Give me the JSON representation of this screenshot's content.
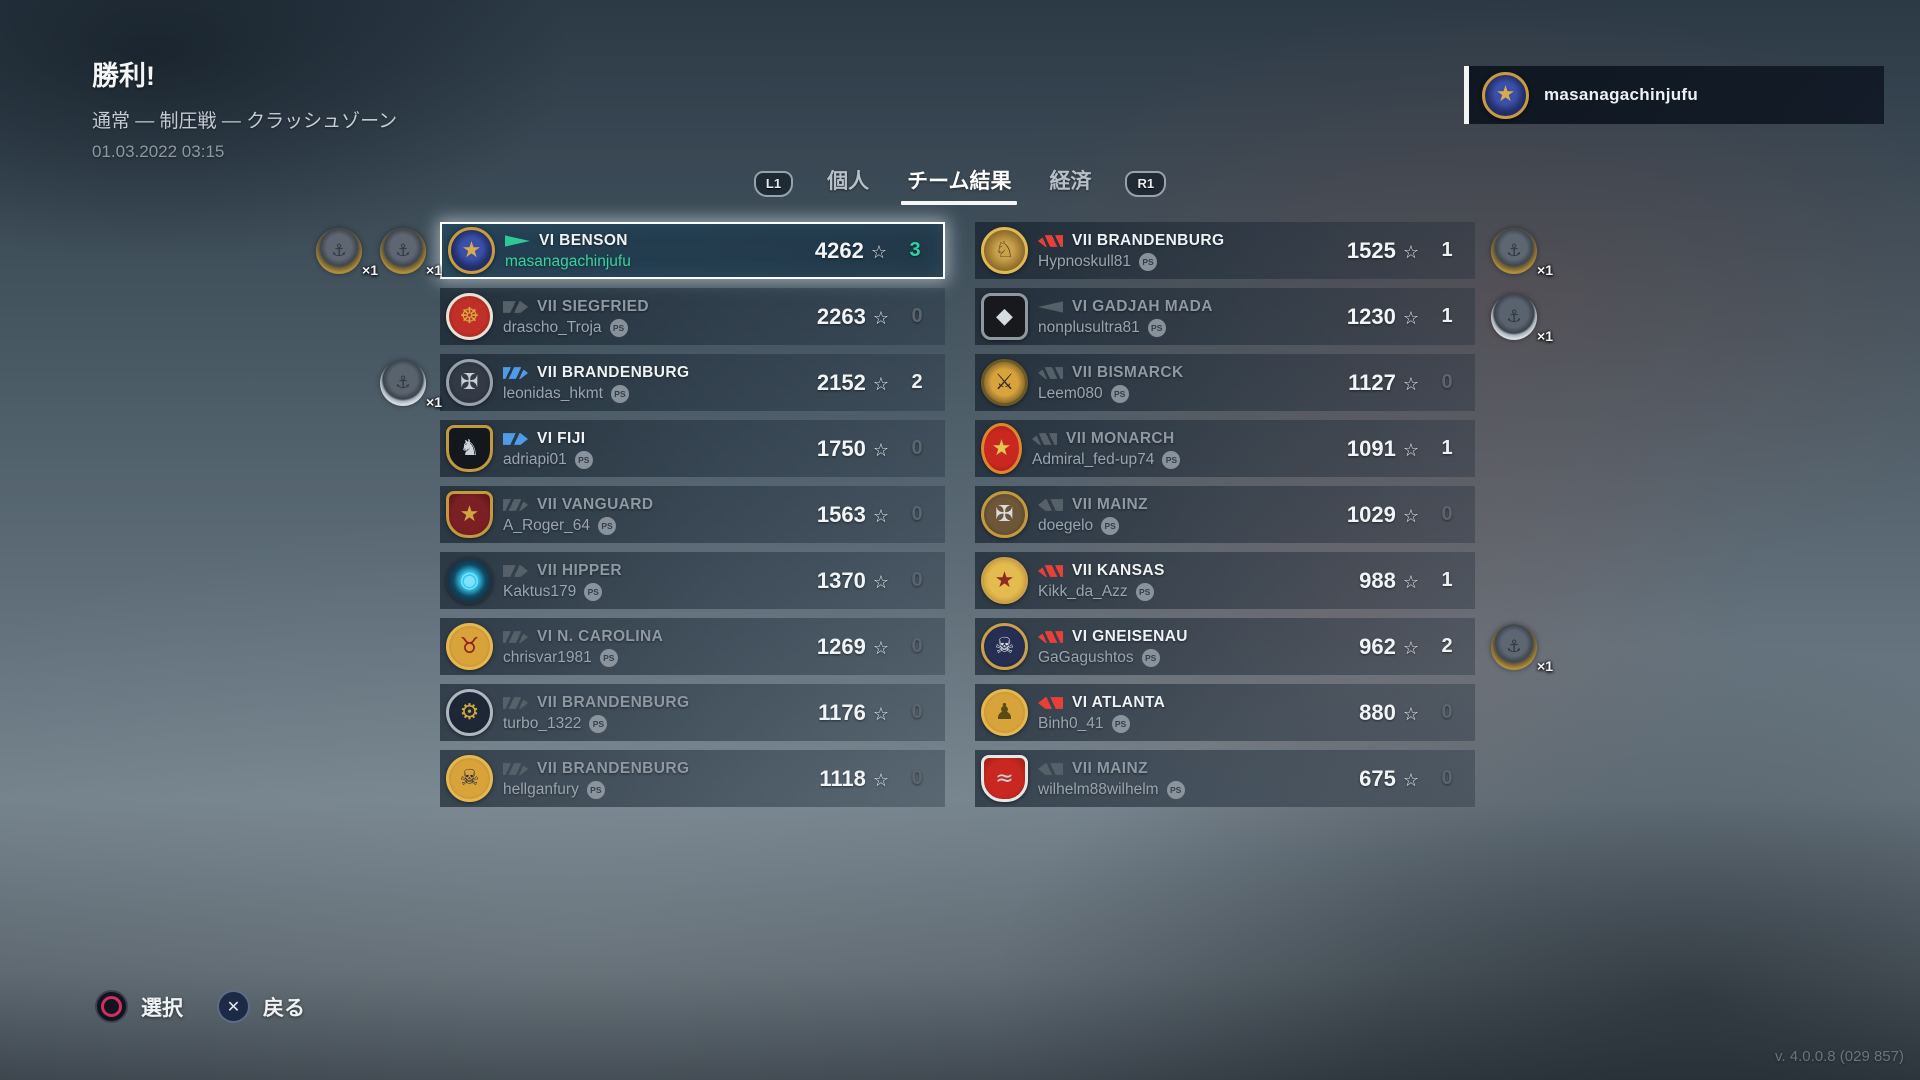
{
  "header": {
    "result": "勝利!",
    "mode": "通常 — 制圧戦 — クラッシュゾーン",
    "timestamp": "01.03.2022 03:15"
  },
  "profile": {
    "name": "masanagachinjufu",
    "emblem": {
      "shape": "circle",
      "bg": "radial-gradient(circle at 50% 45%, #3a4fa8 0 35%, #23306b 60%, #1a2450 100%)",
      "ring": "#c99b3f",
      "glyph": "★",
      "glyph_color": "#d9ab4f"
    }
  },
  "tabs": {
    "l1_label": "L1",
    "r1_label": "R1",
    "items": [
      {
        "label": "個人",
        "active": false
      },
      {
        "label": "チーム結果",
        "active": true
      },
      {
        "label": "経済",
        "active": false
      }
    ]
  },
  "icons": {
    "star": "☆",
    "ps": "PS",
    "cross": "✕"
  },
  "colors": {
    "accent": "#2fd3a2",
    "enemy": "#e84039",
    "division": "#4f9be8",
    "dead": "#566069"
  },
  "teams": {
    "left": [
      {
        "label": "VI BENSON",
        "player": "masanagachinjufu",
        "score": "4262",
        "kills": "3",
        "class": "destroyer",
        "state": "self",
        "ps": false,
        "medals": [
          {
            "type": "gold",
            "count": "×1"
          },
          {
            "type": "gold",
            "count": "×1"
          }
        ],
        "emblem": {
          "shape": "circle",
          "bg": "radial-gradient(circle at 50% 45%, #3a4fa8 0 35%, #23306b 60%, #1a2450 100%)",
          "ring": "#c99b3f",
          "glyph": "★",
          "glyph_color": "#d9ab4f"
        }
      },
      {
        "label": "VII SIEGFRIED",
        "player": "drascho_Troja",
        "score": "2263",
        "kills": "0",
        "class": "cruiser",
        "state": "ally-dead",
        "ps": true,
        "medals": [],
        "emblem": {
          "shape": "circle",
          "bg": "radial-gradient(circle, #c03028 0 55%, #8e1f1c 100%)",
          "ring": "#e8e2d4",
          "glyph": "☸",
          "glyph_color": "#d9a93f"
        }
      },
      {
        "label": "VII BRANDENBURG",
        "player": "leonidas_hkmt",
        "score": "2152",
        "kills": "2",
        "class": "battleship",
        "state": "division",
        "ps": true,
        "medals": [
          {
            "type": "silver",
            "count": "×1"
          }
        ],
        "emblem": {
          "shape": "circle",
          "bg": "radial-gradient(circle, #323a46 0 55%, #20262e 100%)",
          "ring": "#98a1ab",
          "glyph": "✠",
          "glyph_color": "#c9ced4"
        }
      },
      {
        "label": "VI FIJI",
        "player": "adriapi01",
        "score": "1750",
        "kills": "0",
        "class": "cruiser",
        "state": "division",
        "ps": true,
        "medals": [],
        "emblem": {
          "shape": "shield",
          "bg": "#14171c",
          "ring": "#c2993d",
          "glyph": "♞",
          "glyph_color": "#cdd3d8"
        }
      },
      {
        "label": "VII VANGUARD",
        "player": "A_Roger_64",
        "score": "1563",
        "kills": "0",
        "class": "battleship",
        "state": "ally-dead",
        "ps": true,
        "medals": [],
        "emblem": {
          "shape": "shield",
          "bg": "radial-gradient(circle, #7a2024 0 60%, #571417 100%)",
          "ring": "#c2993d",
          "glyph": "★",
          "glyph_color": "#d2a63f"
        }
      },
      {
        "label": "VII HIPPER",
        "player": "Kaktus179",
        "score": "1370",
        "kills": "0",
        "class": "cruiser",
        "state": "ally-dead",
        "ps": true,
        "medals": [],
        "emblem": {
          "shape": "circle",
          "bg": "radial-gradient(circle, #36c9f2 0 28%, #104a63 55%, #0b1a26 100%)",
          "ring": "#233241",
          "glyph": "◉",
          "glyph_color": "#7fe3ff"
        }
      },
      {
        "label": "VI N. CAROLINA",
        "player": "chrisvar1981",
        "score": "1269",
        "kills": "0",
        "class": "battleship",
        "state": "ally-dead",
        "ps": true,
        "medals": [],
        "emblem": {
          "shape": "circle",
          "bg": "radial-gradient(circle, #d9a33c 0 60%, #a87a26 100%)",
          "ring": "#e4b84e",
          "glyph": "♉",
          "glyph_color": "#8e1f1c"
        }
      },
      {
        "label": "VII BRANDENBURG",
        "player": "turbo_1322",
        "score": "1176",
        "kills": "0",
        "class": "battleship",
        "state": "ally-dead",
        "ps": true,
        "medals": [],
        "emblem": {
          "shape": "circle",
          "bg": "radial-gradient(circle, #1d2736 0 60%, #131a25 100%)",
          "ring": "#aeb6bf",
          "glyph": "⚙",
          "glyph_color": "#d2a63f"
        }
      },
      {
        "label": "VII BRANDENBURG",
        "player": "hellganfury",
        "score": "1118",
        "kills": "0",
        "class": "battleship",
        "state": "ally-dead",
        "ps": true,
        "medals": [],
        "emblem": {
          "shape": "circle",
          "bg": "radial-gradient(circle, #d9a33c 0 60%, #a87a26 100%)",
          "ring": "#e4b84e",
          "glyph": "☠",
          "glyph_color": "#2a2f38"
        }
      }
    ],
    "right": [
      {
        "label": "VII BRANDENBURG",
        "player": "Hypnoskull81",
        "score": "1525",
        "kills": "1",
        "class": "battleship",
        "state": "enemy",
        "ps": true,
        "medals": [
          {
            "type": "gold",
            "count": "×1"
          }
        ],
        "emblem": {
          "shape": "circle",
          "bg": "radial-gradient(circle, #caa04a 0 30%, #8a6a28 70%, #6e5420 100%)",
          "ring": "#e0b955",
          "glyph": "♘",
          "glyph_color": "#3a3326"
        }
      },
      {
        "label": "VI GADJAH MADA",
        "player": "nonplusultra81",
        "score": "1230",
        "kills": "1",
        "class": "destroyer",
        "state": "enemy-dead",
        "ps": true,
        "medals": [
          {
            "type": "silver",
            "count": "×1"
          }
        ],
        "emblem": {
          "shape": "square",
          "bg": "#17191d",
          "ring": "#8f979f",
          "glyph": "◆",
          "glyph_color": "#d7dce0"
        }
      },
      {
        "label": "VII BISMARCK",
        "player": "Leem080",
        "score": "1127",
        "kills": "0",
        "class": "battleship",
        "state": "enemy-dead",
        "ps": true,
        "medals": [],
        "emblem": {
          "shape": "circle",
          "bg": "radial-gradient(circle, #d9a33c 0 45%, #3a3323 100%)",
          "ring": "#6b5a26",
          "glyph": "⚔",
          "glyph_color": "#2e2a1c"
        }
      },
      {
        "label": "VII MONARCH",
        "player": "Admiral_fed-up74",
        "score": "1091",
        "kills": "1",
        "class": "battleship",
        "state": "enemy-dead",
        "ps": true,
        "medals": [],
        "emblem": {
          "shape": "oval",
          "bg": "radial-gradient(circle, #c8281f 0 60%, #931a14 100%)",
          "ring": "#e0852e",
          "glyph": "★",
          "glyph_color": "#e8c54e"
        }
      },
      {
        "label": "VII MAINZ",
        "player": "doegelo",
        "score": "1029",
        "kills": "0",
        "class": "cruiser",
        "state": "enemy-dead",
        "ps": true,
        "medals": [],
        "emblem": {
          "shape": "circle",
          "bg": "radial-gradient(circle, #6e5638 0 55%, #4a3a26 100%)",
          "ring": "#c2993d",
          "glyph": "✠",
          "glyph_color": "#d8dde2"
        }
      },
      {
        "label": "VII KANSAS",
        "player": "Kikk_da_Azz",
        "score": "988",
        "kills": "1",
        "class": "battleship",
        "state": "enemy",
        "ps": true,
        "medals": [],
        "emblem": {
          "shape": "circle",
          "bg": "radial-gradient(circle, #e3bb4e 0 55%, #b08a2c 100%)",
          "ring": "#caa04a",
          "glyph": "★",
          "glyph_color": "#8e2a20"
        }
      },
      {
        "label": "VI GNEISENAU",
        "player": "GaGagushtos",
        "score": "962",
        "kills": "2",
        "class": "battleship",
        "state": "enemy",
        "ps": true,
        "medals": [
          {
            "type": "gold",
            "count": "×1"
          }
        ],
        "emblem": {
          "shape": "circle",
          "bg": "radial-gradient(circle, #262e52 0 60%, #181d36 100%)",
          "ring": "#caa04a",
          "glyph": "☠",
          "glyph_color": "#e4e8ec"
        }
      },
      {
        "label": "VI ATLANTA",
        "player": "Binh0_41",
        "score": "880",
        "kills": "0",
        "class": "cruiser",
        "state": "enemy",
        "ps": true,
        "medals": [],
        "emblem": {
          "shape": "circle",
          "bg": "radial-gradient(circle, #d9a33c 0 60%, #a87a26 100%)",
          "ring": "#e4b84e",
          "glyph": "♟",
          "glyph_color": "#5a4a16"
        }
      },
      {
        "label": "VII MAINZ",
        "player": "wilhelm88wilhelm",
        "score": "675",
        "kills": "0",
        "class": "cruiser",
        "state": "enemy-dead",
        "ps": true,
        "medals": [],
        "emblem": {
          "shape": "shield",
          "bg": "radial-gradient(circle, #c8281f 0 60%, #9a1d16 100%)",
          "ring": "#e8e8e8",
          "glyph": "≈",
          "glyph_color": "#cfd6db"
        }
      }
    ]
  },
  "footer": {
    "select_label": "選択",
    "back_label": "戻る",
    "version": "v. 4.0.0.8 (029 857)"
  }
}
